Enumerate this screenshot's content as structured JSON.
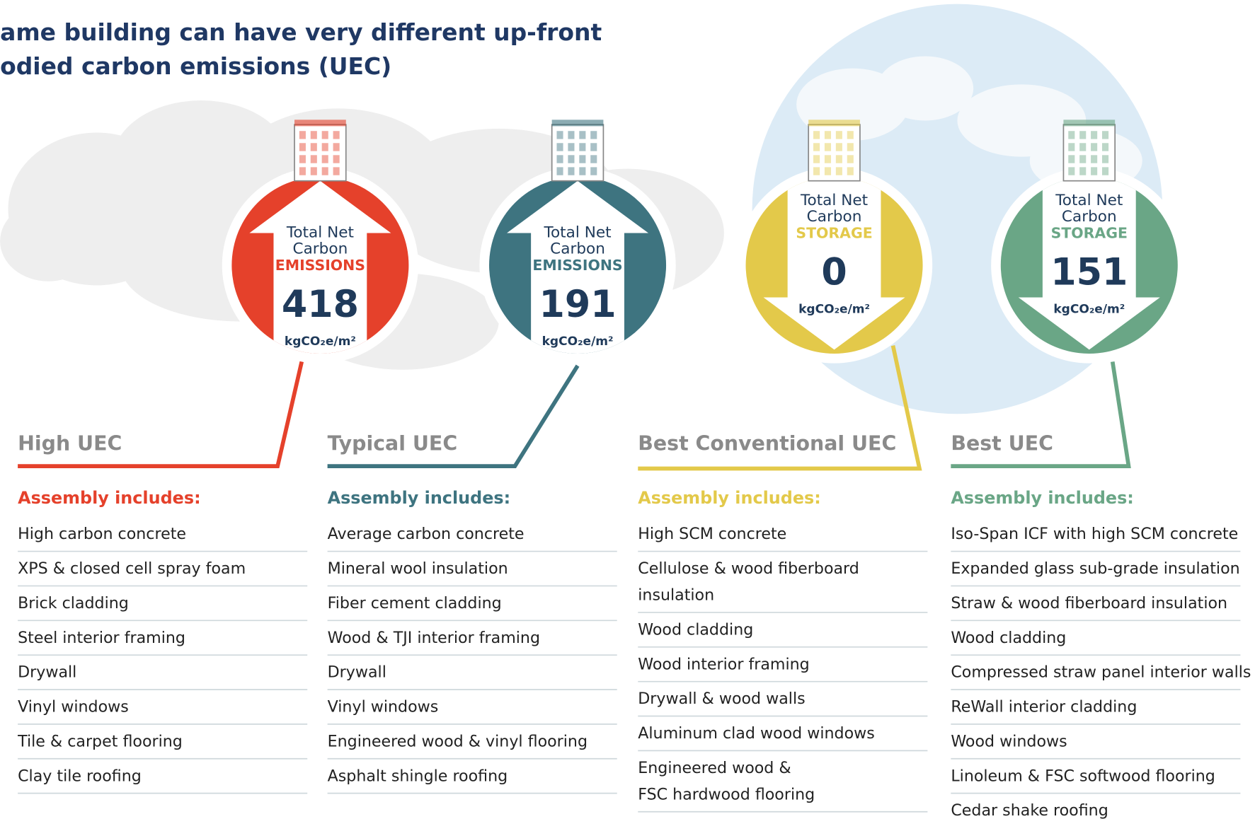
{
  "header": {
    "title_lines": [
      "ame building can have very different up-front",
      "odied carbon emissions (UEC)"
    ]
  },
  "columns": [
    {
      "badge": {
        "line1": "Total Net",
        "line2": "Carbon",
        "kind": "EMISSIONS",
        "value": 418,
        "unit": "kgCO₂e/m²"
      },
      "heading": "High UEC",
      "subheading": "Assembly includes:",
      "items": [
        [
          "High carbon concrete"
        ],
        [
          "XPS & closed cell spray foam"
        ],
        [
          "Brick cladding"
        ],
        [
          "Steel interior framing"
        ],
        [
          "Drywall"
        ],
        [
          "Vinyl windows"
        ],
        [
          "Tile & carpet flooring"
        ],
        [
          "Clay tile roofing"
        ]
      ]
    },
    {
      "badge": {
        "line1": "Total Net",
        "line2": "Carbon",
        "kind": "EMISSIONS",
        "value": 191,
        "unit": "kgCO₂e/m²"
      },
      "heading": "Typical UEC",
      "subheading": "Assembly includes:",
      "items": [
        [
          "Average carbon concrete"
        ],
        [
          "Mineral wool insulation"
        ],
        [
          "Fiber cement cladding"
        ],
        [
          "Wood & TJI interior framing"
        ],
        [
          "Drywall"
        ],
        [
          "Vinyl windows"
        ],
        [
          "Engineered wood & vinyl flooring"
        ],
        [
          "Asphalt shingle roofing"
        ]
      ]
    },
    {
      "badge": {
        "line1": "Total Net",
        "line2": "Carbon",
        "kind": "STORAGE",
        "value": 0,
        "unit": "kgCO₂e/m²"
      },
      "heading": "Best Conventional UEC",
      "subheading": "Assembly includes:",
      "items": [
        [
          "High SCM concrete"
        ],
        [
          "Cellulose & wood fiberboard",
          "insulation"
        ],
        [
          "Wood cladding"
        ],
        [
          "Wood interior framing"
        ],
        [
          "Drywall & wood walls"
        ],
        [
          "Aluminum clad wood windows"
        ],
        [
          "Engineered wood &",
          "FSC hardwood flooring"
        ]
      ]
    },
    {
      "badge": {
        "line1": "Total Net",
        "line2": "Carbon",
        "kind": "STORAGE",
        "value": 151,
        "unit": "kgCO₂e/m²"
      },
      "heading": "Best UEC",
      "subheading": "Assembly includes:",
      "items": [
        [
          "Iso-Span ICF with high SCM concrete"
        ],
        [
          "Expanded glass sub-grade insulation"
        ],
        [
          "Straw & wood fiberboard insulation"
        ],
        [
          "Wood cladding"
        ],
        [
          "Compressed straw panel interior walls"
        ],
        [
          "ReWall interior cladding"
        ],
        [
          "Wood windows"
        ],
        [
          "Linoleum & FSC softwood flooring"
        ],
        [
          "Cedar shake roofing"
        ]
      ]
    }
  ]
}
